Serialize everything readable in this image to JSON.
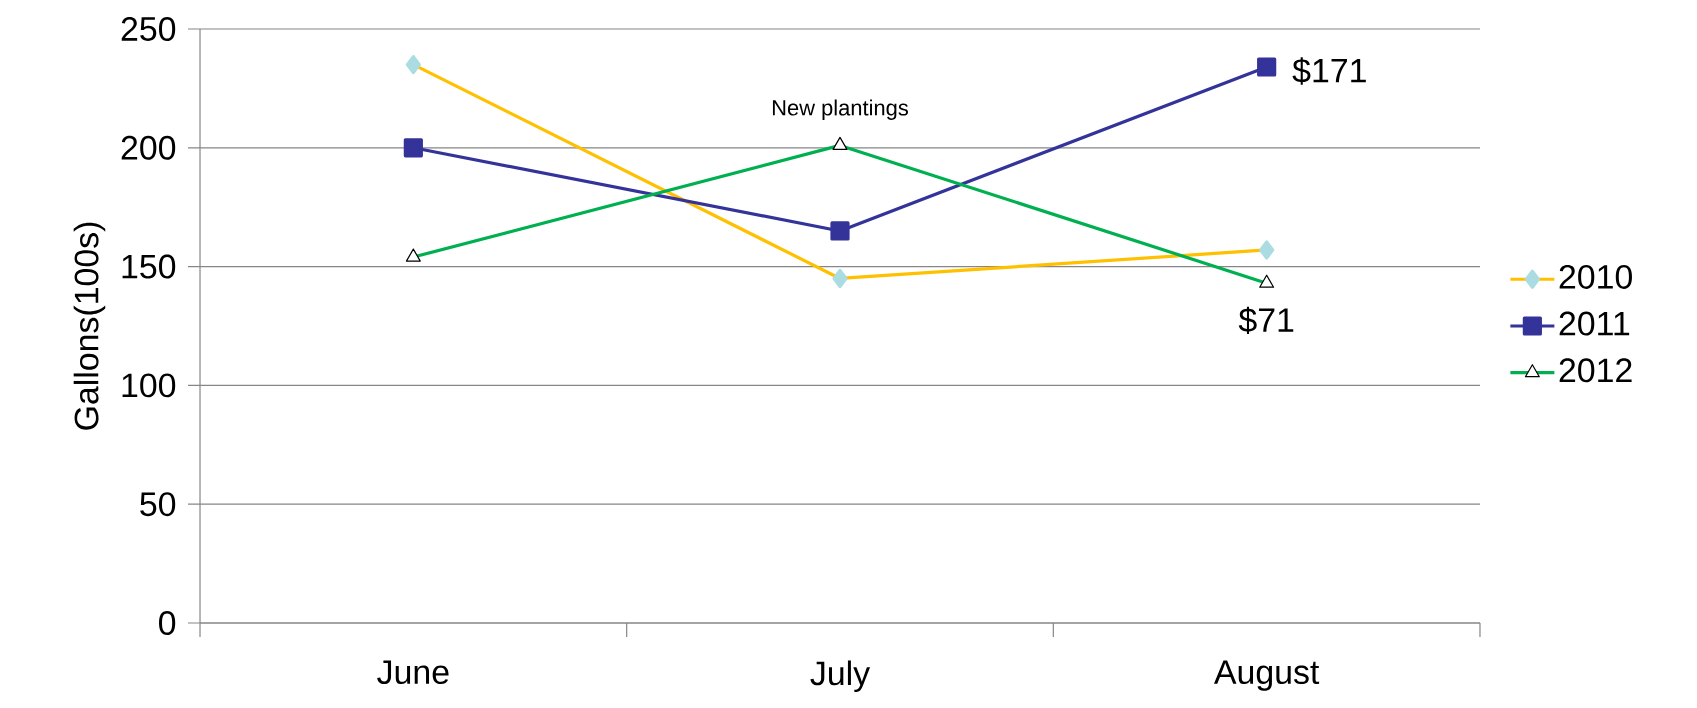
{
  "chart_data": {
    "type": "line",
    "ylabel": "Gallons(100s)",
    "categories": [
      "June",
      "July",
      "August"
    ],
    "series": [
      {
        "name": "2010",
        "color": "#ffc000",
        "marker": "diamond",
        "values": [
          235,
          145,
          157
        ]
      },
      {
        "name": "2011",
        "color": "#333399",
        "marker": "square",
        "values": [
          200,
          165,
          234
        ]
      },
      {
        "name": "2012",
        "color": "#00b050",
        "marker": "triangle",
        "values": [
          154,
          201,
          143
        ]
      }
    ],
    "ylim": [
      0,
      250
    ],
    "yticks": [
      0,
      50,
      100,
      150,
      200,
      250
    ],
    "grid": "y",
    "legend": "right",
    "annotations": [
      {
        "text": "New plantings",
        "x": "July",
        "y": 201
      },
      {
        "text": "$171",
        "x": "August",
        "y": 234
      },
      {
        "text": "$71",
        "x": "August",
        "y": 143
      }
    ]
  }
}
